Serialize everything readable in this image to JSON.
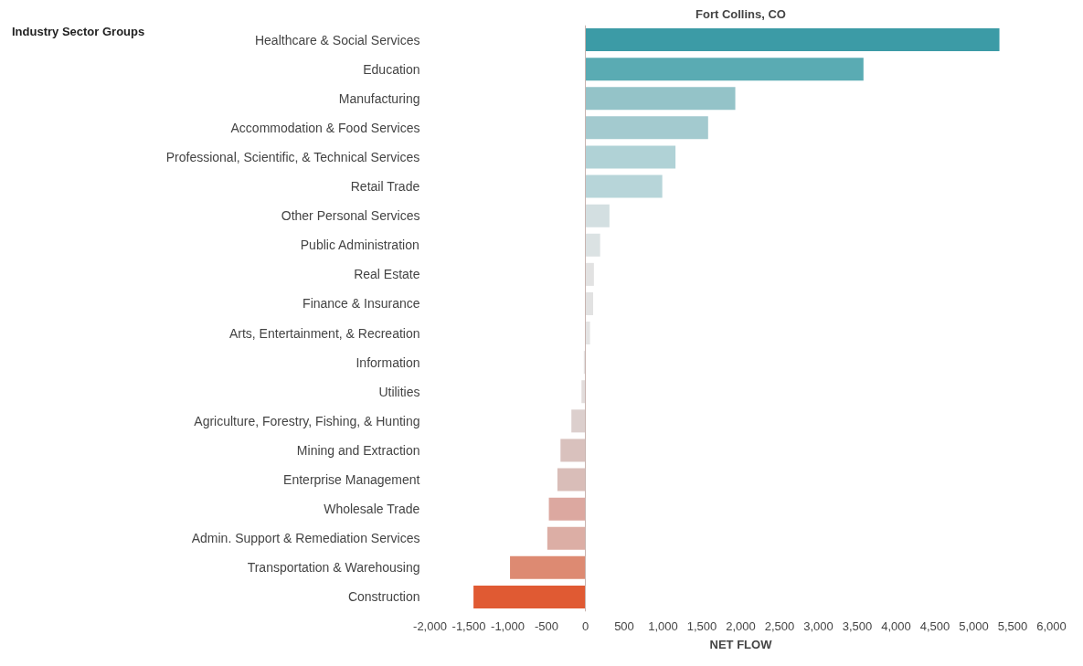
{
  "chart_data": {
    "type": "bar",
    "orientation": "horizontal",
    "title": "Fort Collins, CO",
    "ylabel": "Industry Sector Groups",
    "xlabel": "NET FLOW",
    "categories": [
      "Healthcare & Social Services",
      "Education",
      "Manufacturing",
      "Accommodation & Food Services",
      "Professional, Scientific, & Technical Services",
      "Retail Trade",
      "Other Personal Services",
      "Public Administration",
      "Real Estate",
      "Finance & Insurance",
      "Arts, Entertainment, & Recreation",
      "Information",
      "Utilities",
      "Agriculture, Forestry, Fishing, & Hunting",
      "Mining and Extraction",
      "Enterprise Management",
      "Wholesale Trade",
      "Admin. Support & Remediation Services",
      "Transportation & Warehousing",
      "Construction"
    ],
    "values": [
      5330,
      3580,
      1930,
      1580,
      1160,
      990,
      310,
      190,
      110,
      100,
      60,
      -20,
      -50,
      -180,
      -320,
      -360,
      -470,
      -490,
      -970,
      -1440
    ],
    "colors": [
      "#3c9ba6",
      "#5aabb3",
      "#94c3c8",
      "#a3cacf",
      "#b0d2d6",
      "#b7d5d9",
      "#d3dfe1",
      "#dbe2e3",
      "#e2e2e2",
      "#e2e2e2",
      "#e4e4e4",
      "#e4e2e2",
      "#e2dcdb",
      "#dccfcd",
      "#d9c1bd",
      "#d9bdb8",
      "#dca8a0",
      "#dcaea5",
      "#dd8a72",
      "#e05a33"
    ],
    "xlim": [
      -2000,
      6000
    ],
    "xticks": [
      {
        "value": -2000,
        "label": "-2,000"
      },
      {
        "value": -1500,
        "label": "-1,500"
      },
      {
        "value": -1000,
        "label": "-1,000"
      },
      {
        "value": -500,
        "label": "-500"
      },
      0,
      500,
      {
        "value": 1000,
        "label": "1,000"
      },
      {
        "value": 1500,
        "label": "1,500"
      },
      {
        "value": 2000,
        "label": "2,000"
      },
      {
        "value": 2500,
        "label": "2,500"
      },
      {
        "value": 3000,
        "label": "3,000"
      },
      {
        "value": 3500,
        "label": "3,500"
      },
      {
        "value": 4000,
        "label": "4,000"
      },
      {
        "value": 4500,
        "label": "4,500"
      },
      {
        "value": 5000,
        "label": "5,000"
      },
      {
        "value": 5500,
        "label": "5,500"
      },
      {
        "value": 6000,
        "label": "6,000"
      }
    ],
    "ref_lines": [
      {
        "axis": "x",
        "value": 0,
        "color": "#c8b4b0"
      }
    ]
  }
}
